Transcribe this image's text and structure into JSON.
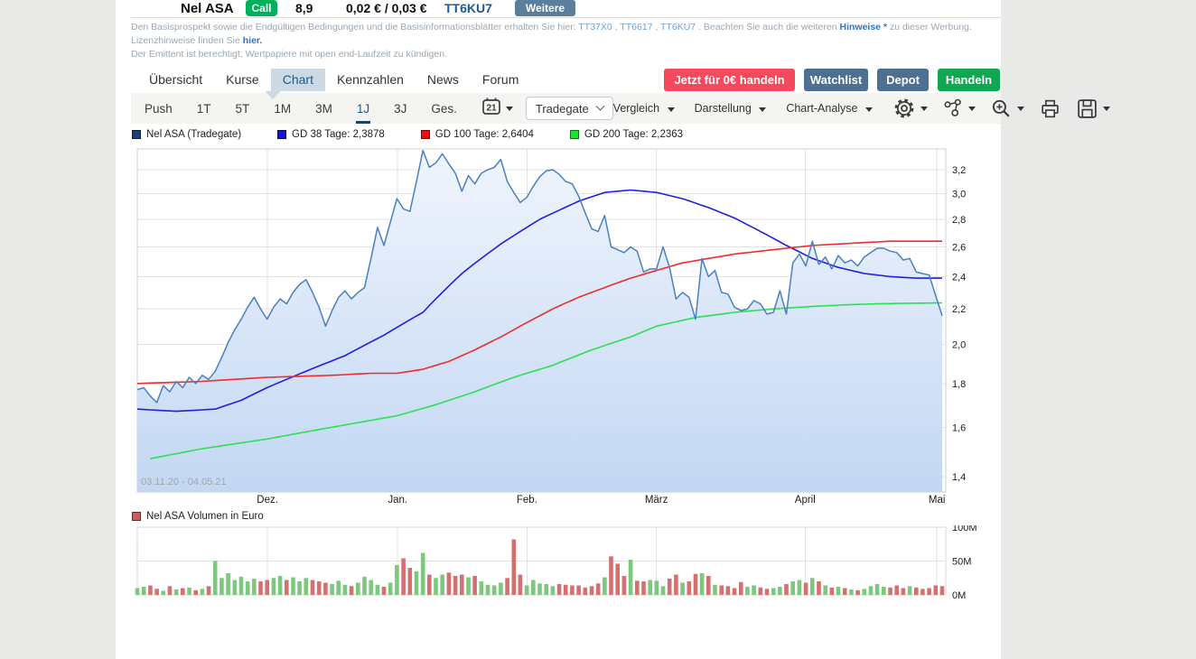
{
  "topbar": {
    "title": "Nel ASA",
    "badge": "Call",
    "leverage": "8,9",
    "bid_ask": "0,02 € / 0,03 €",
    "wkn": "TT6KU7",
    "more_button": "Weitere"
  },
  "disclaimer": {
    "part1": "Den Basisprospekt sowie die Endgültigen Bedingungen und die Basisinformationsblätter erhalten Sie hier: ",
    "link1": "TT37X0",
    "sep1": " , ",
    "link2": "TT6617",
    "sep2": " , ",
    "link3": "TT6KU7",
    "part2": " . Beachten Sie auch die weiteren ",
    "link4": "Hinweise *",
    "part3": " zu dieser Werbung. Lizenzhinweise finden Sie ",
    "link5": "hier.",
    "line2": "Der Emittent ist berechtigt, Wertpapiere mit open end-Laufzeit zu kündigen."
  },
  "tabs": {
    "items": [
      "Übersicht",
      "Kurse",
      "Chart",
      "Kennzahlen",
      "News",
      "Forum"
    ],
    "active": "Chart"
  },
  "actions": {
    "cta": "Jetzt für 0€ handeln",
    "watchlist": "Watchlist",
    "depot": "Depot",
    "trade": "Handeln"
  },
  "toolbar": {
    "periods": [
      "Push",
      "1T",
      "5T",
      "1M",
      "3M",
      "1J",
      "3J",
      "Ges."
    ],
    "active_period": "1J",
    "calendar_day": "21",
    "venue": "Tradegate",
    "menus": [
      "Vergleich",
      "Darstellung",
      "Chart-Analyse"
    ]
  },
  "legend": {
    "items": [
      {
        "label": "Nel ASA (Tradegate)",
        "color": "#1c3f77"
      },
      {
        "label": "GD 38 Tage: 2,3878",
        "color": "#1414d2"
      },
      {
        "label": "GD 100 Tage: 2,6404",
        "color": "#ee1111"
      },
      {
        "label": "GD 200 Tage: 2,2363",
        "color": "#17e52e"
      }
    ]
  },
  "volume_legend": {
    "label": "Nel ASA Volumen in Euro",
    "color": "#cd5b5b"
  },
  "chart_data": [
    {
      "type": "area",
      "date_range_label": "03.11.20 - 04.05.21",
      "y_scale": "log",
      "y_domain": [
        1.344,
        3.384
      ],
      "y_ticks": [
        3.2,
        3.0,
        2.8,
        2.6,
        2.4,
        2.2,
        2.0,
        1.8,
        1.6,
        1.4
      ],
      "y_tick_labels": [
        "3,2",
        "3,0",
        "2,8",
        "2,6",
        "2,4",
        "2,2",
        "2,0",
        "1,8",
        "1,6",
        "1,4"
      ],
      "x_months": [
        {
          "label": "Dez.",
          "t": 0.161
        },
        {
          "label": "Jan.",
          "t": 0.322
        },
        {
          "label": "Feb.",
          "t": 0.482
        },
        {
          "label": "März",
          "t": 0.642
        },
        {
          "label": "April",
          "t": 0.826
        },
        {
          "label": "Mai",
          "t": 0.989
        }
      ],
      "series": [
        {
          "name": "Nel ASA (Tradegate)",
          "kind": "area",
          "color": "#4a7fc1",
          "area_top": "#f0f5fd",
          "area_bottom": "#c3d7f3",
          "values": [
            1.77,
            1.78,
            1.74,
            1.71,
            1.79,
            1.76,
            1.81,
            1.78,
            1.83,
            1.8,
            1.84,
            1.82,
            1.86,
            1.93,
            2.01,
            2.08,
            2.14,
            2.21,
            2.27,
            2.2,
            2.14,
            2.21,
            2.26,
            2.23,
            2.3,
            2.35,
            2.38,
            2.3,
            2.21,
            2.1,
            2.19,
            2.27,
            2.31,
            2.26,
            2.3,
            2.33,
            2.52,
            2.74,
            2.61,
            2.78,
            2.96,
            2.88,
            2.86,
            3.1,
            3.37,
            3.22,
            3.26,
            3.34,
            3.25,
            3.17,
            3.02,
            3.15,
            3.08,
            3.17,
            3.2,
            3.22,
            3.29,
            3.1,
            3.01,
            2.93,
            2.97,
            3.06,
            3.14,
            3.19,
            3.2,
            3.16,
            3.1,
            3.08,
            2.98,
            2.85,
            2.73,
            2.71,
            2.83,
            2.6,
            2.58,
            2.56,
            2.6,
            2.57,
            2.43,
            2.45,
            2.45,
            2.6,
            2.46,
            2.26,
            2.3,
            2.27,
            2.14,
            2.52,
            2.4,
            2.44,
            2.3,
            2.29,
            2.21,
            2.19,
            2.2,
            2.25,
            2.23,
            2.17,
            2.18,
            2.31,
            2.17,
            2.49,
            2.55,
            2.47,
            2.64,
            2.48,
            2.53,
            2.45,
            2.54,
            2.49,
            2.51,
            2.47,
            2.53,
            2.56,
            2.59,
            2.59,
            2.57,
            2.56,
            2.51,
            2.52,
            2.43,
            2.42,
            2.41,
            2.28,
            2.16
          ]
        },
        {
          "name": "GD 38 Tage",
          "kind": "line",
          "color": "#1f1fe0",
          "last_value": "2,3878",
          "points": [
            [
              0,
              1.68
            ],
            [
              6,
              1.67
            ],
            [
              12,
              1.68
            ],
            [
              16,
              1.72
            ],
            [
              20,
              1.78
            ],
            [
              26,
              1.86
            ],
            [
              32,
              1.94
            ],
            [
              38,
              2.05
            ],
            [
              44,
              2.18
            ],
            [
              50,
              2.42
            ],
            [
              56,
              2.62
            ],
            [
              62,
              2.8
            ],
            [
              68,
              2.94
            ],
            [
              72,
              3.01
            ],
            [
              76,
              3.03
            ],
            [
              80,
              3.01
            ],
            [
              84,
              2.96
            ],
            [
              88,
              2.89
            ],
            [
              92,
              2.81
            ],
            [
              96,
              2.71
            ],
            [
              100,
              2.61
            ],
            [
              104,
              2.52
            ],
            [
              108,
              2.46
            ],
            [
              112,
              2.42
            ],
            [
              116,
              2.4
            ],
            [
              120,
              2.39
            ],
            [
              124,
              2.39
            ]
          ]
        },
        {
          "name": "GD 100 Tage",
          "kind": "line",
          "color": "#ea2d2d",
          "last_value": "2,6404",
          "points": [
            [
              0,
              1.8
            ],
            [
              10,
              1.81
            ],
            [
              20,
              1.83
            ],
            [
              30,
              1.84
            ],
            [
              36,
              1.85
            ],
            [
              40,
              1.85
            ],
            [
              44,
              1.87
            ],
            [
              48,
              1.91
            ],
            [
              52,
              1.97
            ],
            [
              56,
              2.04
            ],
            [
              60,
              2.12
            ],
            [
              64,
              2.2
            ],
            [
              68,
              2.27
            ],
            [
              72,
              2.33
            ],
            [
              76,
              2.39
            ],
            [
              80,
              2.44
            ],
            [
              84,
              2.49
            ],
            [
              88,
              2.52
            ],
            [
              92,
              2.55
            ],
            [
              96,
              2.57
            ],
            [
              100,
              2.59
            ],
            [
              104,
              2.61
            ],
            [
              108,
              2.62
            ],
            [
              112,
              2.63
            ],
            [
              116,
              2.64
            ],
            [
              124,
              2.64
            ]
          ]
        },
        {
          "name": "GD 200 Tage",
          "kind": "line",
          "color": "#2ce052",
          "last_value": "2,2363",
          "points": [
            [
              2,
              1.47
            ],
            [
              10,
              1.51
            ],
            [
              20,
              1.55
            ],
            [
              30,
              1.6
            ],
            [
              40,
              1.65
            ],
            [
              46,
              1.7
            ],
            [
              52,
              1.76
            ],
            [
              58,
              1.83
            ],
            [
              64,
              1.89
            ],
            [
              70,
              1.97
            ],
            [
              76,
              2.04
            ],
            [
              80,
              2.1
            ],
            [
              86,
              2.15
            ],
            [
              92,
              2.18
            ],
            [
              98,
              2.2
            ],
            [
              104,
              2.215
            ],
            [
              110,
              2.226
            ],
            [
              117,
              2.233
            ],
            [
              124,
              2.236
            ]
          ]
        }
      ]
    },
    {
      "type": "bar",
      "name": "Nel ASA Volumen in Euro",
      "ylim": [
        0,
        100
      ],
      "y_ticks": [
        0,
        50,
        100
      ],
      "y_tick_labels": [
        "0M",
        "50M",
        "100M"
      ],
      "up_color": "#7cc87c",
      "down_color": "#d47070",
      "values": [
        10,
        12,
        14,
        9,
        6,
        13,
        8,
        10,
        11,
        7,
        9,
        13,
        50,
        25,
        32,
        22,
        27,
        20,
        24,
        20,
        22,
        25,
        28,
        22,
        26,
        20,
        25,
        22,
        20,
        18,
        16,
        21,
        15,
        13,
        18,
        27,
        22,
        15,
        12,
        18,
        44,
        54,
        40,
        35,
        62,
        30,
        25,
        30,
        33,
        28,
        30,
        26,
        28,
        20,
        15,
        14,
        18,
        25,
        82,
        30,
        14,
        22,
        17,
        16,
        13,
        16,
        15,
        14,
        14,
        11,
        13,
        17,
        26,
        57,
        46,
        28,
        52,
        21,
        20,
        22,
        21,
        13,
        24,
        30,
        18,
        20,
        31,
        32,
        28,
        15,
        14,
        13,
        10,
        19,
        12,
        14,
        11,
        9,
        10,
        12,
        16,
        20,
        22,
        18,
        25,
        20,
        14,
        11,
        12,
        10,
        8,
        7,
        9,
        13,
        16,
        12,
        11,
        14,
        10,
        13,
        11,
        9,
        10,
        14,
        13
      ]
    }
  ]
}
